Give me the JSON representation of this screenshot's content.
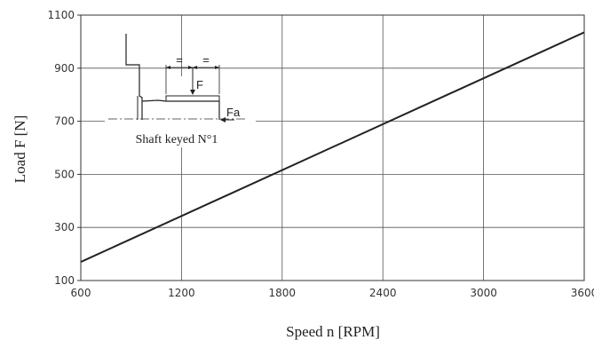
{
  "chart_data": {
    "type": "line",
    "xlabel": "Speed n [RPM]",
    "ylabel": "Load F [N]",
    "xlim": [
      600,
      3600
    ],
    "ylim": [
      100,
      1100
    ],
    "x_ticks": [
      "600",
      "1200",
      "1800",
      "2400",
      "3000",
      "3600"
    ],
    "y_ticks": [
      "100",
      "300",
      "500",
      "700",
      "900",
      "1100"
    ],
    "grid": true,
    "series": [
      {
        "x": [
          600,
          3600
        ],
        "y": [
          170,
          1035
        ],
        "color": "#222222"
      }
    ],
    "annotations": {
      "inset_caption": "Shaft keyed N°1",
      "force_label": "F",
      "axial_force_label": "Fa",
      "equal_mark_left": "=",
      "equal_mark_right": "="
    }
  }
}
